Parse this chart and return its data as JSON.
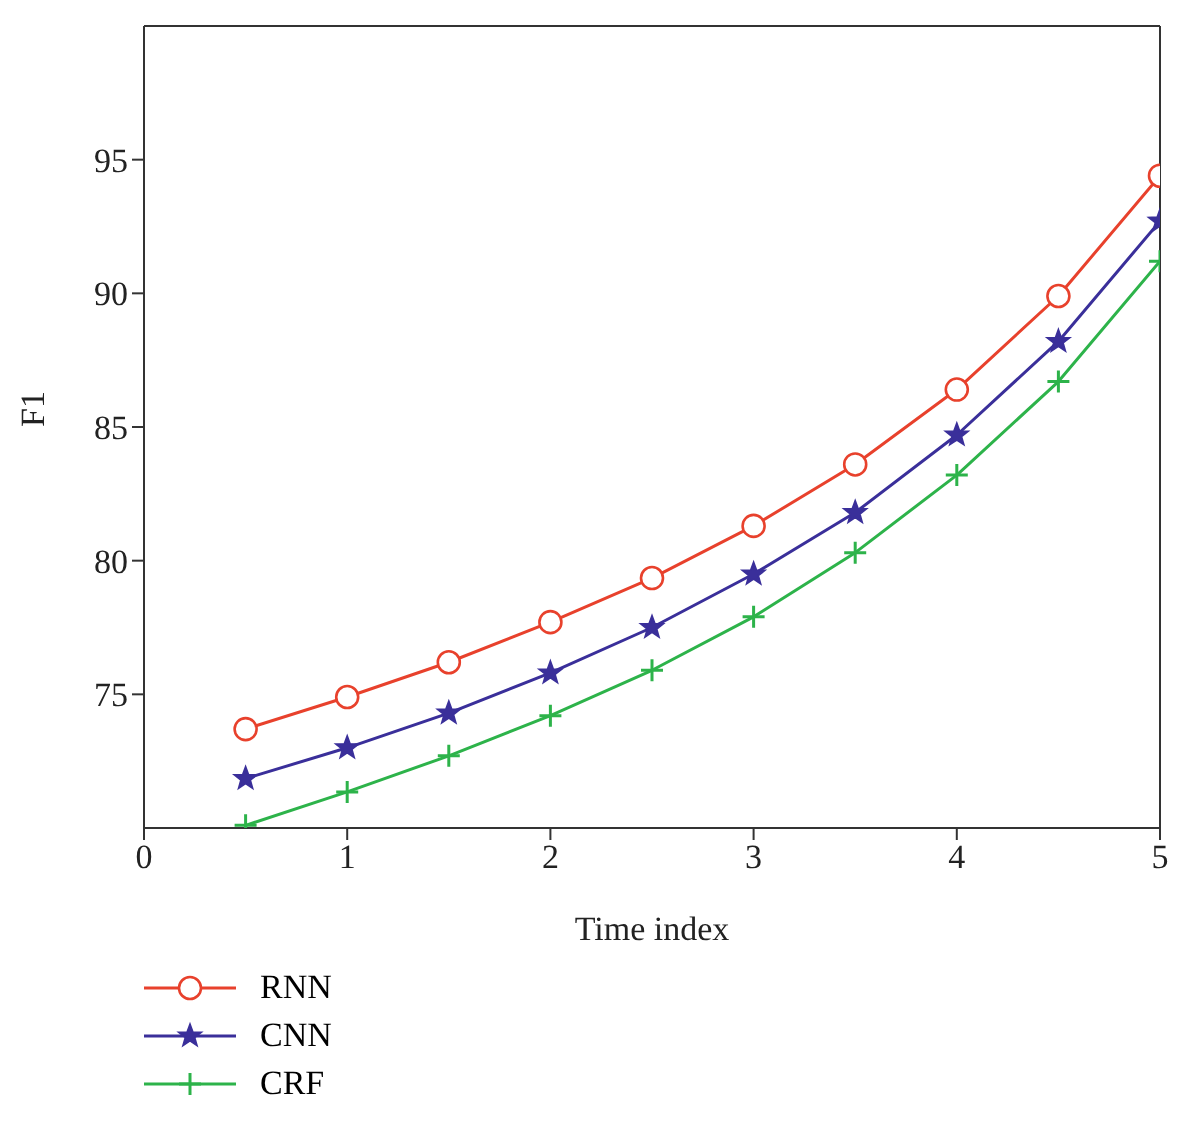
{
  "chart_data": {
    "type": "line",
    "xlabel": "Time index",
    "ylabel": "F1",
    "x": [
      0.5,
      1,
      1.5,
      2,
      2.5,
      3,
      3.5,
      4,
      4.5,
      5
    ],
    "series": [
      {
        "name": "RNN",
        "color": "#e8412c",
        "marker": "circle",
        "values": [
          73.7,
          74.9,
          76.2,
          77.7,
          79.35,
          81.3,
          83.6,
          86.4,
          89.9,
          94.4
        ]
      },
      {
        "name": "CNN",
        "color": "#3a2f9a",
        "marker": "star",
        "values": [
          71.85,
          73.0,
          74.3,
          75.8,
          77.5,
          79.5,
          81.8,
          84.7,
          88.2,
          92.7
        ]
      },
      {
        "name": "CRF",
        "color": "#2db34a",
        "marker": "cross",
        "values": [
          70.1,
          71.35,
          72.7,
          74.2,
          75.9,
          77.9,
          80.3,
          83.2,
          86.7,
          91.2
        ]
      }
    ],
    "xlim": [
      0,
      5
    ],
    "xticks": [
      0,
      1,
      2,
      3,
      4,
      5
    ],
    "ylim": [
      70,
      100
    ],
    "yticks": [
      75,
      80,
      85,
      90,
      95
    ],
    "grid": false,
    "legend": "bottom left",
    "line_style": "solid"
  }
}
